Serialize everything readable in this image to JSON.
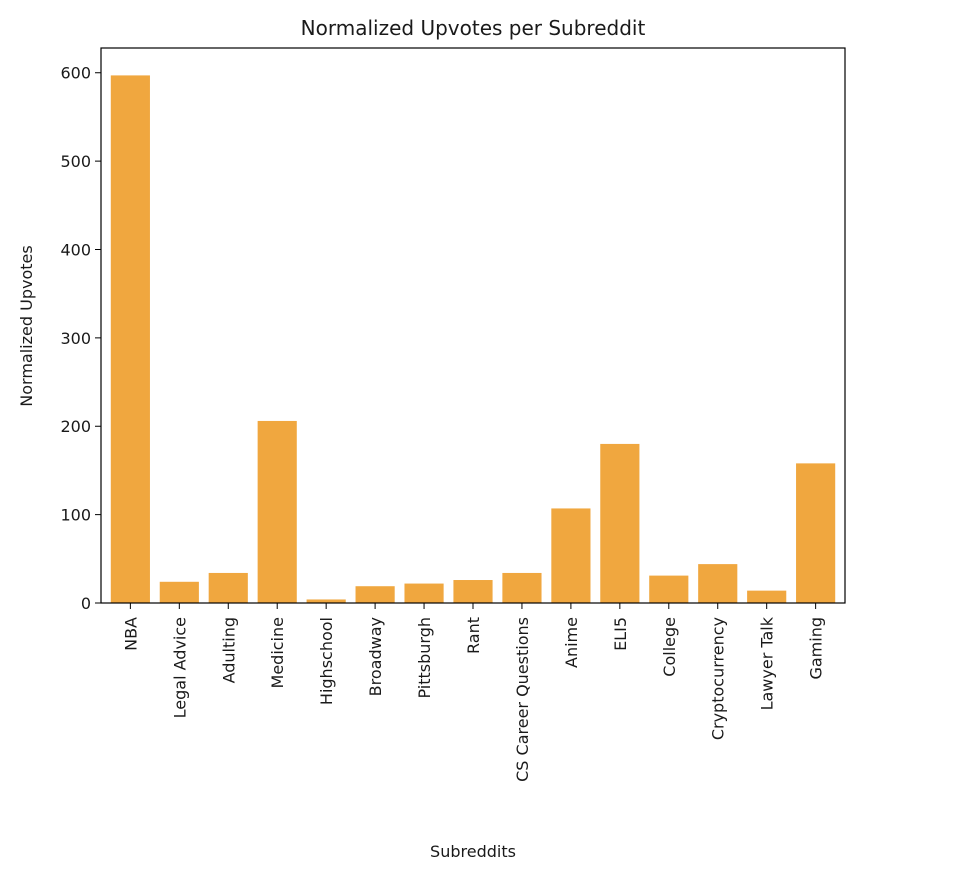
{
  "chart_data": {
    "type": "bar",
    "title": "Normalized Upvotes per Subreddit",
    "xlabel": "Subreddits",
    "ylabel": "Normalized Upvotes",
    "categories": [
      "NBA",
      "Legal Advice",
      "Adulting",
      "Medicine",
      "Highschool",
      "Broadway",
      "Pittsburgh",
      "Rant",
      "CS Career Questions",
      "Anime",
      "ELI5",
      "College",
      "Cryptocurrency",
      "Lawyer Talk",
      "Gaming"
    ],
    "values": [
      597,
      24,
      34,
      206,
      4,
      19,
      22,
      26,
      34,
      107,
      180,
      31,
      44,
      14,
      158
    ],
    "ylim": [
      0,
      628
    ],
    "yticks": [
      0,
      100,
      200,
      300,
      400,
      500,
      600
    ],
    "bar_color": "#f0a73f",
    "grid": false,
    "legend": "none"
  }
}
